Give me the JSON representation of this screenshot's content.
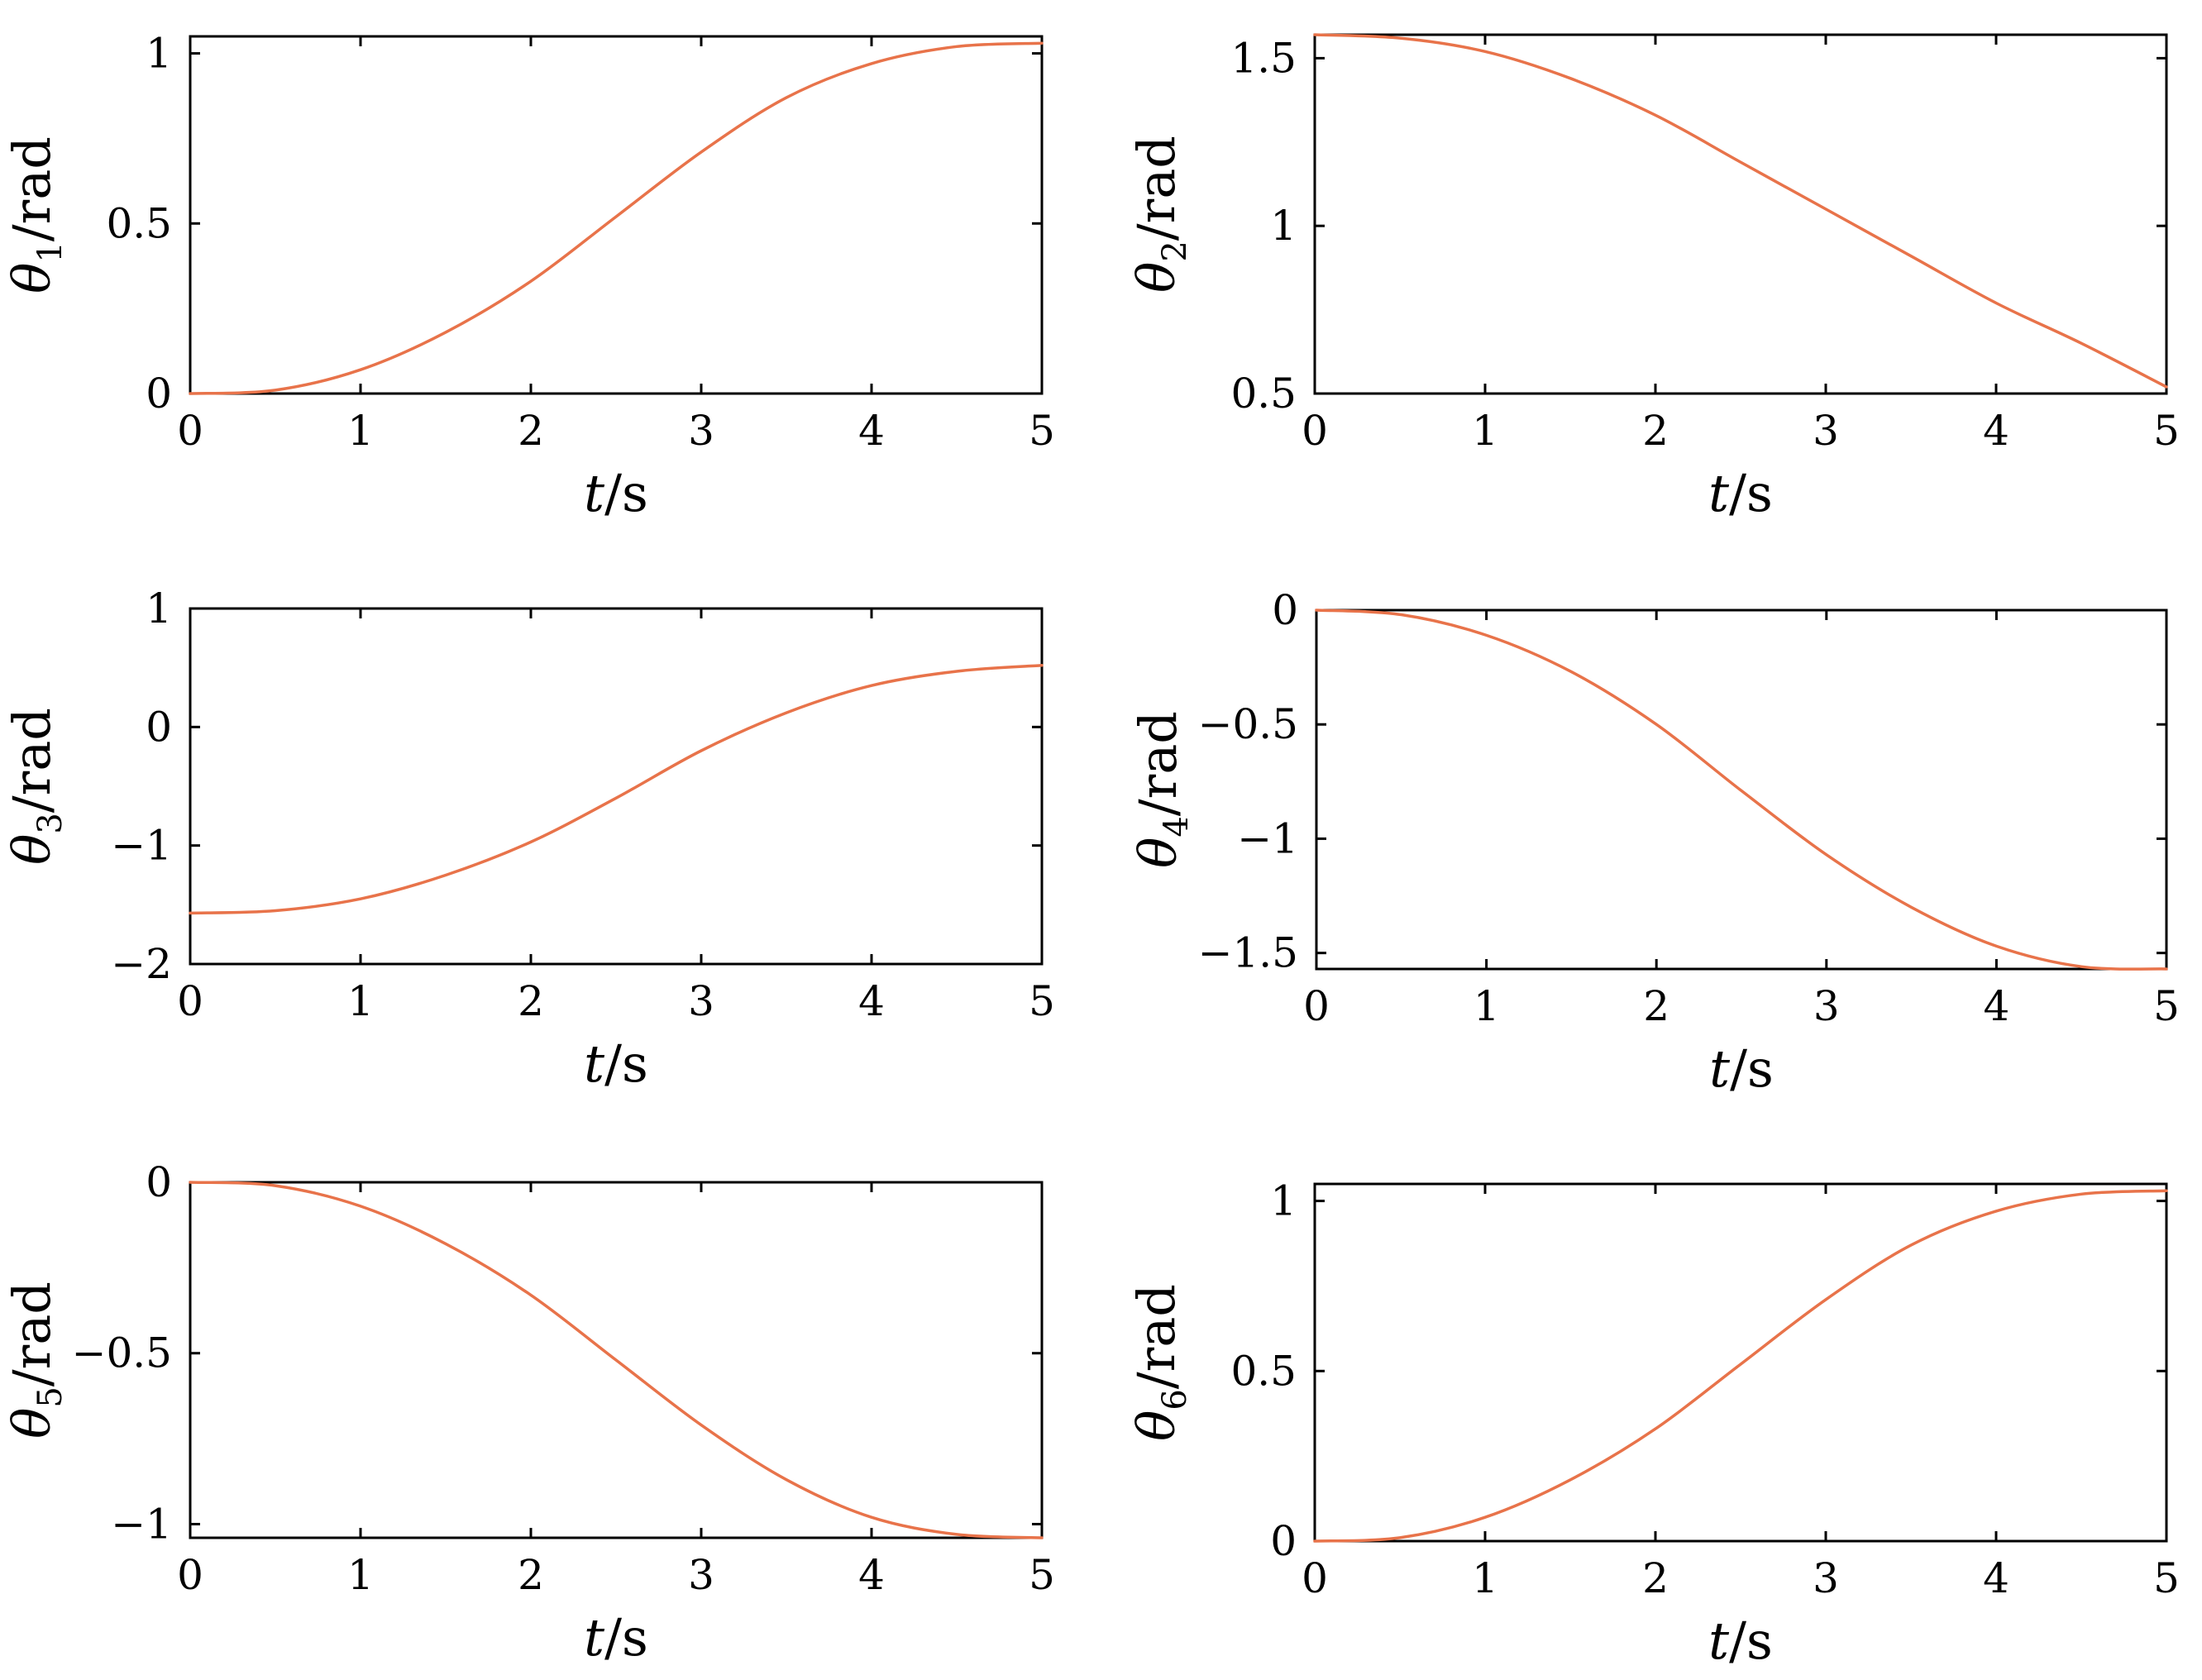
{
  "colors": {
    "curve": "#e8734a",
    "axes": "#000000"
  },
  "chart_data": [
    {
      "type": "line",
      "xlabel": {
        "var": "t",
        "unit": "s"
      },
      "ylabel": {
        "var": "θ",
        "sub": "1",
        "unit": "rad"
      },
      "xlim": [
        0,
        5
      ],
      "ylim": [
        0,
        1.05
      ],
      "xticks": [
        0,
        1,
        2,
        3,
        4,
        5
      ],
      "yticks": [
        0,
        0.5,
        1
      ],
      "xtick_labels": [
        "0",
        "1",
        "2",
        "3",
        "4",
        "5"
      ],
      "ytick_labels": [
        "0",
        "0.5",
        "1"
      ],
      "series": [
        {
          "x": [
            0,
            0.5,
            1,
            1.5,
            2,
            2.5,
            3,
            3.5,
            4,
            4.5,
            5
          ],
          "y": [
            0,
            0.01,
            0.07,
            0.18,
            0.33,
            0.52,
            0.71,
            0.87,
            0.97,
            1.02,
            1.03
          ]
        }
      ]
    },
    {
      "type": "line",
      "xlabel": {
        "var": "t",
        "unit": "s"
      },
      "ylabel": {
        "var": "θ",
        "sub": "2",
        "unit": "rad"
      },
      "xlim": [
        0,
        5
      ],
      "ylim": [
        0.5,
        1.57
      ],
      "xticks": [
        0,
        1,
        2,
        3,
        4,
        5
      ],
      "yticks": [
        0.5,
        1,
        1.5
      ],
      "xtick_labels": [
        "0",
        "1",
        "2",
        "3",
        "4",
        "5"
      ],
      "ytick_labels": [
        "0.5",
        "1",
        "1.5"
      ],
      "series": [
        {
          "x": [
            0,
            0.5,
            1,
            1.5,
            2,
            2.5,
            3,
            3.5,
            4,
            4.5,
            5
          ],
          "y": [
            1.57,
            1.56,
            1.52,
            1.44,
            1.33,
            1.19,
            1.05,
            0.91,
            0.77,
            0.65,
            0.52
          ]
        }
      ]
    },
    {
      "type": "line",
      "xlabel": {
        "var": "t",
        "unit": "s"
      },
      "ylabel": {
        "var": "θ",
        "sub": "3",
        "unit": "rad"
      },
      "xlim": [
        0,
        5
      ],
      "ylim": [
        -2,
        1
      ],
      "xticks": [
        0,
        1,
        2,
        3,
        4,
        5
      ],
      "yticks": [
        -2,
        -1,
        0,
        1
      ],
      "xtick_labels": [
        "0",
        "1",
        "2",
        "3",
        "4",
        "5"
      ],
      "ytick_labels": [
        "−2",
        "−1",
        "0",
        "1"
      ],
      "series": [
        {
          "x": [
            0,
            0.5,
            1,
            1.5,
            2,
            2.5,
            3,
            3.5,
            4,
            4.5,
            5
          ],
          "y": [
            -1.57,
            -1.55,
            -1.45,
            -1.25,
            -0.97,
            -0.6,
            -0.2,
            0.12,
            0.35,
            0.47,
            0.52
          ]
        }
      ]
    },
    {
      "type": "line",
      "xlabel": {
        "var": "t",
        "unit": "s"
      },
      "ylabel": {
        "var": "θ",
        "sub": "4",
        "unit": "rad"
      },
      "xlim": [
        0,
        5
      ],
      "ylim": [
        -1.57,
        0
      ],
      "xticks": [
        0,
        1,
        2,
        3,
        4,
        5
      ],
      "yticks": [
        -1.5,
        -1,
        -0.5,
        0
      ],
      "xtick_labels": [
        "0",
        "1",
        "2",
        "3",
        "4",
        "5"
      ],
      "ytick_labels": [
        "−1.5",
        "−1",
        "−0.5",
        "0"
      ],
      "series": [
        {
          "x": [
            0,
            0.5,
            1,
            1.5,
            2,
            2.5,
            3,
            3.5,
            4,
            4.5,
            5
          ],
          "y": [
            0,
            -0.02,
            -0.11,
            -0.27,
            -0.5,
            -0.79,
            -1.07,
            -1.3,
            -1.47,
            -1.56,
            -1.57
          ]
        }
      ]
    },
    {
      "type": "line",
      "xlabel": {
        "var": "t",
        "unit": "s"
      },
      "ylabel": {
        "var": "θ",
        "sub": "5",
        "unit": "rad"
      },
      "xlim": [
        0,
        5
      ],
      "ylim": [
        -1.04,
        0
      ],
      "xticks": [
        0,
        1,
        2,
        3,
        4,
        5
      ],
      "yticks": [
        -1,
        -0.5,
        0
      ],
      "xtick_labels": [
        "0",
        "1",
        "2",
        "3",
        "4",
        "5"
      ],
      "ytick_labels": [
        "−1",
        "−0.5",
        "0"
      ],
      "series": [
        {
          "x": [
            0,
            0.5,
            1,
            1.5,
            2,
            2.5,
            3,
            3.5,
            4,
            4.5,
            5
          ],
          "y": [
            0,
            -0.01,
            -0.07,
            -0.18,
            -0.33,
            -0.52,
            -0.71,
            -0.87,
            -0.98,
            -1.03,
            -1.04
          ]
        }
      ]
    },
    {
      "type": "line",
      "xlabel": {
        "var": "t",
        "unit": "s"
      },
      "ylabel": {
        "var": "θ",
        "sub": "6",
        "unit": "rad"
      },
      "xlim": [
        0,
        5
      ],
      "ylim": [
        0,
        1.05
      ],
      "xticks": [
        0,
        1,
        2,
        3,
        4,
        5
      ],
      "yticks": [
        0,
        0.5,
        1
      ],
      "xtick_labels": [
        "0",
        "1",
        "2",
        "3",
        "4",
        "5"
      ],
      "ytick_labels": [
        "0",
        "0.5",
        "1"
      ],
      "series": [
        {
          "x": [
            0,
            0.5,
            1,
            1.5,
            2,
            2.5,
            3,
            3.5,
            4,
            4.5,
            5
          ],
          "y": [
            0,
            0.01,
            0.07,
            0.18,
            0.33,
            0.52,
            0.71,
            0.87,
            0.97,
            1.02,
            1.03
          ]
        }
      ]
    }
  ]
}
